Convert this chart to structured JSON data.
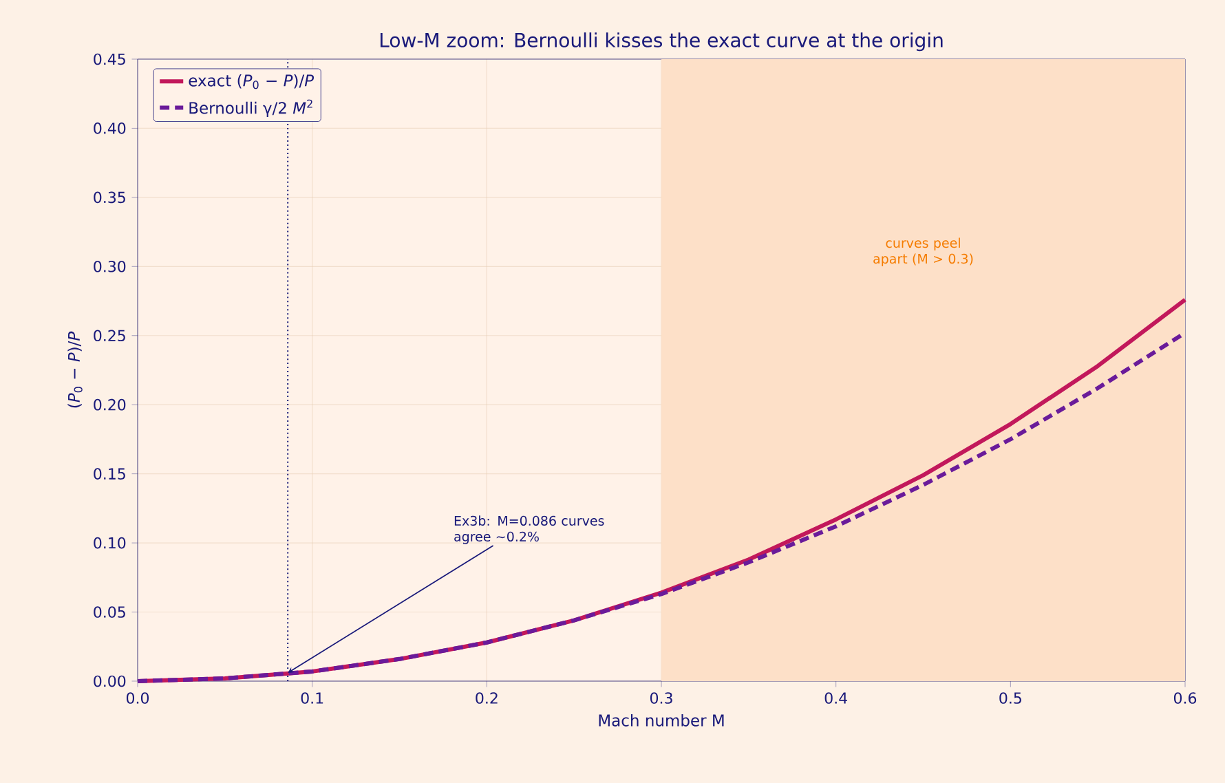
{
  "chart_data": {
    "type": "line",
    "title": "Low-M zoom: Bernoulli kisses the exact curve at the origin",
    "xlabel": "Mach number  M",
    "ylabel": "(*P*$_{0}$ − *P*)/*P*",
    "x": [
      0,
      0.05,
      0.1,
      0.15,
      0.2,
      0.25,
      0.3,
      0.35,
      0.4,
      0.45,
      0.5,
      0.55,
      0.6
    ],
    "series": [
      {
        "name": "exact  (*P*$_{0}$ − *P*)/*P*",
        "color": "#c2185b",
        "line_style": "solid",
        "values": [
          0,
          0.002,
          0.007,
          0.016,
          0.028,
          0.044,
          0.064,
          0.088,
          0.117,
          0.149,
          0.186,
          0.228,
          0.276
        ]
      },
      {
        "name": "Bernoulli  γ/2 *M*$^{2}$",
        "color": "#6a1b9a",
        "line_style": "dashed",
        "values": [
          0,
          0.002,
          0.007,
          0.016,
          0.028,
          0.044,
          0.063,
          0.086,
          0.112,
          0.142,
          0.175,
          0.212,
          0.252
        ]
      }
    ],
    "xlim": [
      0,
      0.6
    ],
    "ylim": [
      0,
      0.45
    ],
    "xticks": [
      {
        "value": 0,
        "label": "0.0"
      },
      0.1,
      0.2,
      0.3,
      0.4,
      0.5,
      0.6
    ],
    "yticks": [
      {
        "value": 0,
        "label": "0.00"
      },
      0.05,
      {
        "value": 0.1,
        "label": "0.10"
      },
      0.15,
      {
        "value": 0.2,
        "label": "0.20"
      },
      0.25,
      {
        "value": 0.3,
        "label": "0.30"
      },
      0.35,
      {
        "value": 0.4,
        "label": "0.40"
      },
      0.45
    ],
    "ref_lines": [
      {
        "axis": "x",
        "value": 0.086,
        "color": "#1a1a7a",
        "line_style": "dotted"
      }
    ],
    "bands": [
      {
        "axis": "x",
        "from": 0.3,
        "to": 0.6,
        "label": "curves peel apart (M > 0.3)",
        "color": "#fde0c8"
      }
    ],
    "annotations": [
      {
        "text": "Ex3b: M=0.086 curves agree ~0.2%",
        "x": 0.086,
        "y": 0.006
      }
    ],
    "grid": true,
    "legend": "top left"
  }
}
